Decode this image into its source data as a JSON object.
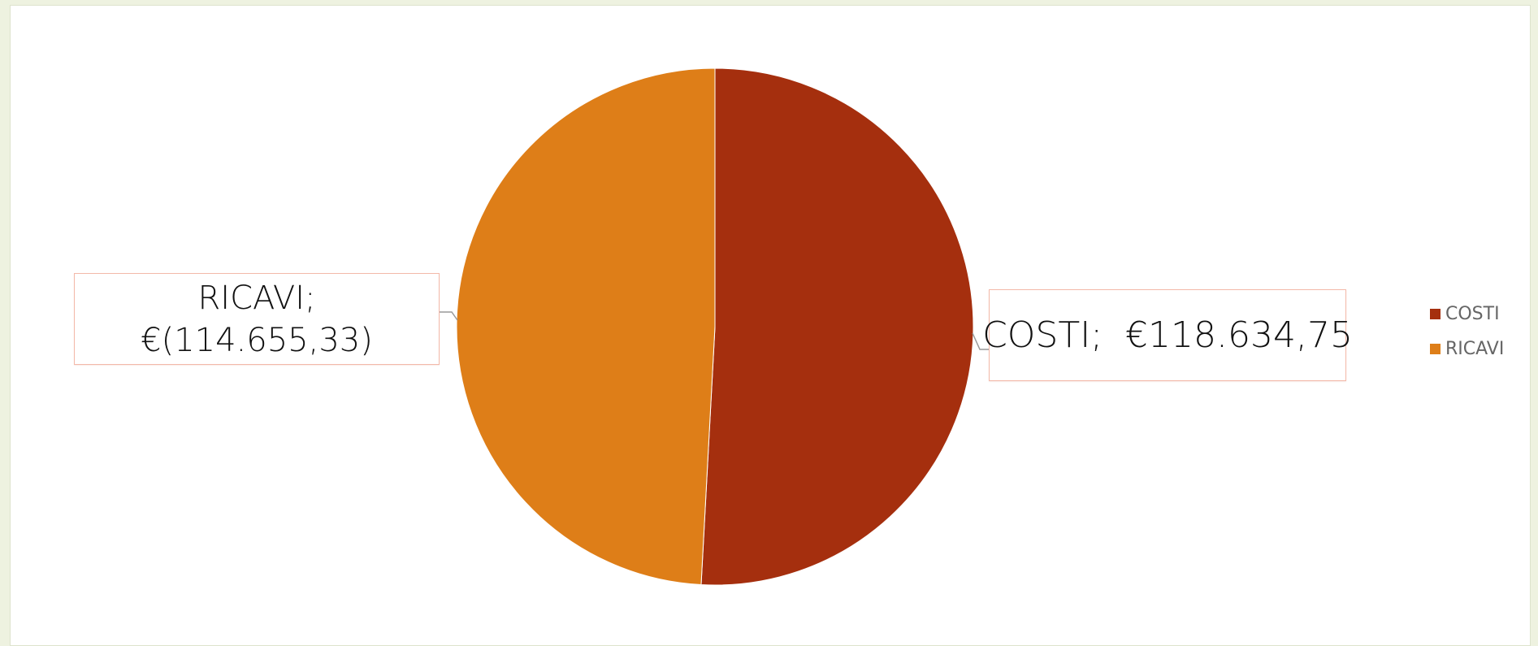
{
  "chart_data": {
    "type": "pie",
    "title": "",
    "slices": [
      {
        "name": "COSTI",
        "value": 118634.75,
        "label": "COSTI;  €118.634,75",
        "color": "#a52f0e"
      },
      {
        "name": "RICAVI",
        "value": 114655.33,
        "label_line1": "RICAVI;",
        "label_line2": "€(114.655,33)",
        "color": "#de7e18"
      }
    ],
    "legend_position": "right"
  },
  "legend": {
    "items": [
      {
        "label": "COSTI",
        "color": "#a52f0e"
      },
      {
        "label": "RICAVI",
        "color": "#de7e18"
      }
    ]
  }
}
